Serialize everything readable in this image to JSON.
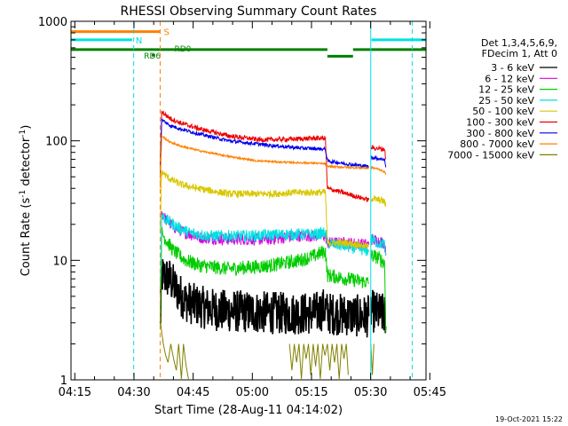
{
  "chart_data": {
    "type": "line",
    "title": "RHESSI Observing Summary Count Rates",
    "xlabel": "Start Time (28-Aug-11 04:14:02)",
    "ylabel_main": "Count Rate (s",
    "ylabel_sup1": "-1",
    "ylabel_mid": " detector",
    "ylabel_sup2": "-1",
    "ylabel_end": ")",
    "y_scale": "log",
    "xlim_minutes": [
      0,
      90
    ],
    "ylim": [
      1,
      1000
    ],
    "x_ticks": [
      {
        "minute": 0.97,
        "label": "04:15"
      },
      {
        "minute": 15.97,
        "label": "04:30"
      },
      {
        "minute": 30.97,
        "label": "04:45"
      },
      {
        "minute": 45.97,
        "label": "05:00"
      },
      {
        "minute": 60.97,
        "label": "05:15"
      },
      {
        "minute": 75.97,
        "label": "05:30"
      },
      {
        "minute": 90.97,
        "label": "05:45"
      }
    ],
    "y_ticks": [
      {
        "value": 1,
        "label": "1"
      },
      {
        "value": 10,
        "label": "10"
      },
      {
        "value": 100,
        "label": "100"
      },
      {
        "value": 1000,
        "label": "1000"
      }
    ],
    "legend_header": [
      "Det 1,3,4,5,6,9,",
      "FDecim 1, Att 0"
    ],
    "legend_position": "right",
    "series": [
      {
        "name": "3 - 6 keV",
        "color": "#000000",
        "noise": 0.18,
        "segments": [
          [
            [
              22.6,
              2.7
            ],
            [
              23.0,
              7.5
            ],
            [
              25,
              7.0
            ],
            [
              27,
              5.5
            ],
            [
              29,
              4.6
            ],
            [
              31,
              4.3
            ],
            [
              34,
              4.0
            ],
            [
              38,
              3.8
            ],
            [
              45,
              3.7
            ],
            [
              55,
              3.6
            ],
            [
              62,
              3.6
            ],
            [
              64.5,
              4.0
            ],
            [
              65,
              3.6
            ],
            [
              70,
              3.5
            ],
            [
              74,
              3.4
            ],
            [
              75.5,
              3.4
            ]
          ],
          [
            [
              76.0,
              3.8
            ],
            [
              78,
              3.6
            ],
            [
              79.5,
              3.5
            ],
            [
              79.8,
              2.8
            ]
          ]
        ]
      },
      {
        "name": "6 - 12 keV",
        "color": "#dd00dd",
        "noise": 0.05,
        "segments": [
          [
            [
              22.6,
              5.0
            ],
            [
              23.0,
              25
            ],
            [
              24,
              22
            ],
            [
              26,
              19
            ],
            [
              29,
              17
            ],
            [
              33,
              15.5
            ],
            [
              40,
              15
            ],
            [
              50,
              15
            ],
            [
              58,
              16
            ],
            [
              62,
              16
            ],
            [
              64.5,
              16
            ],
            [
              65,
              14
            ],
            [
              70,
              14
            ],
            [
              75.5,
              13.5
            ]
          ],
          [
            [
              76.0,
              15
            ],
            [
              78,
              14.5
            ],
            [
              79.5,
              14
            ],
            [
              79.8,
              11
            ]
          ]
        ]
      },
      {
        "name": "12 - 25 keV",
        "color": "#00cc00",
        "noise": 0.06,
        "segments": [
          [
            [
              22.6,
              3.0
            ],
            [
              23.0,
              17
            ],
            [
              24,
              15
            ],
            [
              26,
              12
            ],
            [
              29,
              10
            ],
            [
              33,
              9
            ],
            [
              40,
              8.5
            ],
            [
              50,
              9
            ],
            [
              58,
              10
            ],
            [
              62,
              11
            ],
            [
              64.5,
              12
            ],
            [
              65,
              7.5
            ],
            [
              70,
              7
            ],
            [
              75.5,
              6.5
            ]
          ],
          [
            [
              76.0,
              11
            ],
            [
              78,
              10.5
            ],
            [
              79.5,
              9.5
            ],
            [
              79.8,
              2.5
            ]
          ]
        ]
      },
      {
        "name": "25 - 50 keV",
        "color": "#00e0e0",
        "noise": 0.05,
        "segments": [
          [
            [
              22.6,
              6.0
            ],
            [
              23.0,
              24
            ],
            [
              24,
              22
            ],
            [
              27,
              19
            ],
            [
              30,
              17
            ],
            [
              35,
              16
            ],
            [
              45,
              16
            ],
            [
              55,
              16.5
            ],
            [
              62,
              16.5
            ],
            [
              64.5,
              17
            ],
            [
              65,
              14
            ],
            [
              70,
              13
            ],
            [
              75.5,
              12
            ]
          ],
          [
            [
              76.0,
              15
            ],
            [
              78,
              14
            ],
            [
              79.5,
              13.5
            ],
            [
              79.8,
              11
            ]
          ]
        ]
      },
      {
        "name": "50 - 100 keV",
        "color": "#d8c800",
        "noise": 0.03,
        "segments": [
          [
            [
              22.6,
              18
            ],
            [
              23.0,
              55
            ],
            [
              25,
              48
            ],
            [
              28,
              43
            ],
            [
              32,
              40
            ],
            [
              40,
              36
            ],
            [
              50,
              36
            ],
            [
              58,
              37
            ],
            [
              62,
              37
            ],
            [
              64.5,
              37
            ],
            [
              65,
              14
            ],
            [
              70,
              14
            ],
            [
              75.5,
              13
            ]
          ],
          [
            [
              76.0,
              33
            ],
            [
              78,
              32
            ],
            [
              79.5,
              31
            ],
            [
              79.8,
              28
            ]
          ]
        ]
      },
      {
        "name": "100 - 300 keV",
        "color": "#ee0000",
        "noise": 0.02,
        "segments": [
          [
            [
              22.6,
              60
            ],
            [
              23.0,
              175
            ],
            [
              25,
              155
            ],
            [
              28,
              140
            ],
            [
              33,
              125
            ],
            [
              40,
              110
            ],
            [
              48,
              102
            ],
            [
              55,
              103
            ],
            [
              62,
              105
            ],
            [
              64.5,
              105
            ],
            [
              65,
              40
            ],
            [
              70,
              36
            ],
            [
              75.5,
              32
            ]
          ],
          [
            [
              76.0,
              88
            ],
            [
              78,
              86
            ],
            [
              79.5,
              85
            ],
            [
              79.8,
              70
            ]
          ]
        ]
      },
      {
        "name": "300 - 800 keV",
        "color": "#0000ee",
        "noise": 0.015,
        "segments": [
          [
            [
              22.6,
              50
            ],
            [
              23.0,
              150
            ],
            [
              25,
              135
            ],
            [
              28,
              125
            ],
            [
              33,
              113
            ],
            [
              40,
              100
            ],
            [
              50,
              92
            ],
            [
              58,
              87
            ],
            [
              62,
              86
            ],
            [
              64.5,
              85
            ],
            [
              65,
              68
            ],
            [
              70,
              64
            ],
            [
              75.5,
              61
            ]
          ],
          [
            [
              76.0,
              73
            ],
            [
              78,
              71
            ],
            [
              79.5,
              70
            ],
            [
              79.8,
              60
            ]
          ]
        ]
      },
      {
        "name": "800 - 7000 keV",
        "color": "#ff8000",
        "noise": 0.008,
        "segments": [
          [
            [
              22.6,
              40
            ],
            [
              23.0,
              110
            ],
            [
              25,
              98
            ],
            [
              28,
              90
            ],
            [
              33,
              82
            ],
            [
              40,
              74
            ],
            [
              47,
              68
            ],
            [
              55,
              66
            ],
            [
              62,
              65
            ],
            [
              64.5,
              64
            ],
            [
              65,
              61
            ],
            [
              70,
              60
            ],
            [
              75.5,
              59
            ]
          ],
          [
            [
              76.0,
              60
            ],
            [
              78,
              58
            ],
            [
              79.5,
              55
            ],
            [
              79.8,
              52
            ]
          ]
        ]
      },
      {
        "name": "7000 - 15000 keV",
        "color": "#808000",
        "noise": 0.0,
        "segments": [
          [
            [
              22.7,
              3.0
            ],
            [
              23.0,
              2.5
            ],
            [
              23.4,
              2.0
            ],
            [
              24.0,
              1.6
            ],
            [
              24.6,
              1.4
            ],
            [
              25.3,
              2.0
            ],
            [
              26.0,
              1.5
            ],
            [
              26.7,
              1.2
            ],
            [
              27.3,
              2.0
            ],
            [
              28.0,
              1.0
            ],
            [
              28.5,
              2.0
            ],
            [
              29.2,
              1.3
            ],
            [
              29.8,
              1.0
            ]
          ],
          [
            [
              55.4,
              2.0
            ],
            [
              56.0,
              1.2
            ],
            [
              56.6,
              2.0
            ],
            [
              57.2,
              1.4
            ],
            [
              57.8,
              2.0
            ],
            [
              58.4,
              1.0
            ],
            [
              59.0,
              2.0
            ],
            [
              59.6,
              1.5
            ],
            [
              60.2,
              2.0
            ],
            [
              60.8,
              1.1
            ],
            [
              61.4,
              2.0
            ],
            [
              62.0,
              1.3
            ],
            [
              62.6,
              2.0
            ],
            [
              63.2,
              1.0
            ],
            [
              63.8,
              2.0
            ],
            [
              64.4,
              1.6
            ],
            [
              65.0,
              2.0
            ],
            [
              65.6,
              1.2
            ],
            [
              66.2,
              2.0
            ],
            [
              66.8,
              1.4
            ],
            [
              67.4,
              2.0
            ],
            [
              68.0,
              1.0
            ],
            [
              68.6,
              2.0
            ],
            [
              69.2,
              1.5
            ],
            [
              69.8,
              2.0
            ],
            [
              70.3,
              1.1
            ]
          ],
          [
            [
              76.0,
              2.0
            ],
            [
              76.4,
              1.1
            ],
            [
              76.8,
              2.0
            ]
          ]
        ]
      }
    ],
    "status_bars": [
      {
        "label": "S",
        "color": "#ff8000",
        "value": 820,
        "t_start": 0,
        "t_end": 22.6
      },
      {
        "label": "N",
        "color": "#00e0e0",
        "value": 700,
        "t_start": 0,
        "t_end": 15.5
      },
      {
        "label": "",
        "color": "#00e0e0",
        "value": 700,
        "t_start": 76.2,
        "t_end": 90
      },
      {
        "label": "",
        "color": "#008000",
        "value": 580,
        "t_start": 0,
        "t_end": 65
      },
      {
        "label": "",
        "color": "#008000",
        "value": 510,
        "t_start": 65,
        "t_end": 71.5
      },
      {
        "label": "",
        "color": "#008000",
        "value": 580,
        "t_start": 71.5,
        "t_end": 90
      }
    ],
    "rd_labels": [
      {
        "label": "RD0",
        "color": "#008000",
        "minute": 26.2,
        "value": 600
      },
      {
        "label": "RD6",
        "color": "#008000",
        "minute": 18.5,
        "value": 520
      }
    ],
    "vertical_lines": [
      {
        "minute": 15.9,
        "color": "#00e0e0",
        "style": "dashed"
      },
      {
        "minute": 22.6,
        "color": "#ff8000",
        "style": "dashed"
      },
      {
        "minute": 76.0,
        "color": "#00e0e0",
        "style": "solid"
      },
      {
        "minute": 86.5,
        "color": "#00e0e0",
        "style": "dashed"
      }
    ],
    "colors": {
      "background": "#ffffff",
      "axes": "#000000"
    },
    "footer_date": "19-Oct-2021 15:22"
  }
}
